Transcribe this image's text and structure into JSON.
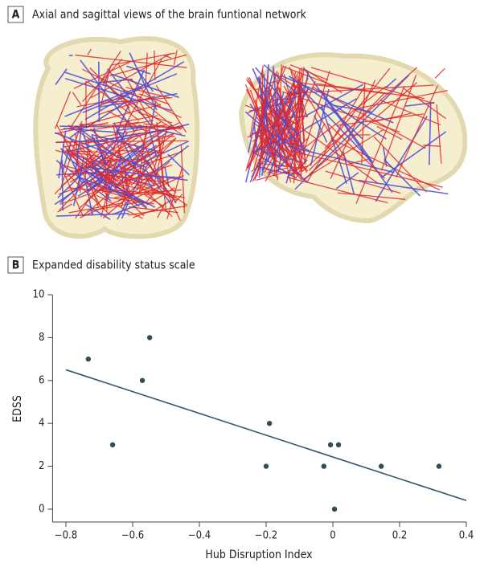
{
  "panels": [
    {
      "label": "A",
      "title": "Axial and sagittal views of the brain funtional network"
    },
    {
      "label": "B",
      "title": "Expanded disability status scale"
    }
  ],
  "chart_data": {
    "type": "scatter",
    "x_label": "Hub Disruption Index",
    "y_label": "EDSS",
    "series": [
      {
        "color": "#2f4c57",
        "x": [
          -0.733,
          -0.66,
          -0.571,
          -0.549,
          -0.2,
          -0.19,
          -0.027,
          -0.007,
          0.017,
          0.005,
          0.145,
          0.318
        ],
        "values": [
          7,
          3,
          6,
          8,
          2,
          4,
          2,
          3,
          3,
          0,
          2,
          2
        ]
      }
    ],
    "fit_line": {
      "color": "#2e5866",
      "x": [
        -0.8,
        0.4
      ],
      "values": [
        6.5,
        0.4
      ]
    },
    "xlim": [
      -0.84,
      0.4
    ],
    "ylim": [
      -0.6,
      10
    ],
    "xticks": [
      {
        "value": -0.8,
        "label": "−0.8"
      },
      {
        "value": -0.6,
        "label": "−0.6"
      },
      {
        "value": -0.4,
        "label": "−0.4"
      },
      {
        "value": -0.2,
        "label": "−0.2"
      },
      0,
      0.2,
      0.4
    ],
    "yticks": [
      0,
      2,
      4,
      6,
      8,
      10
    ]
  }
}
